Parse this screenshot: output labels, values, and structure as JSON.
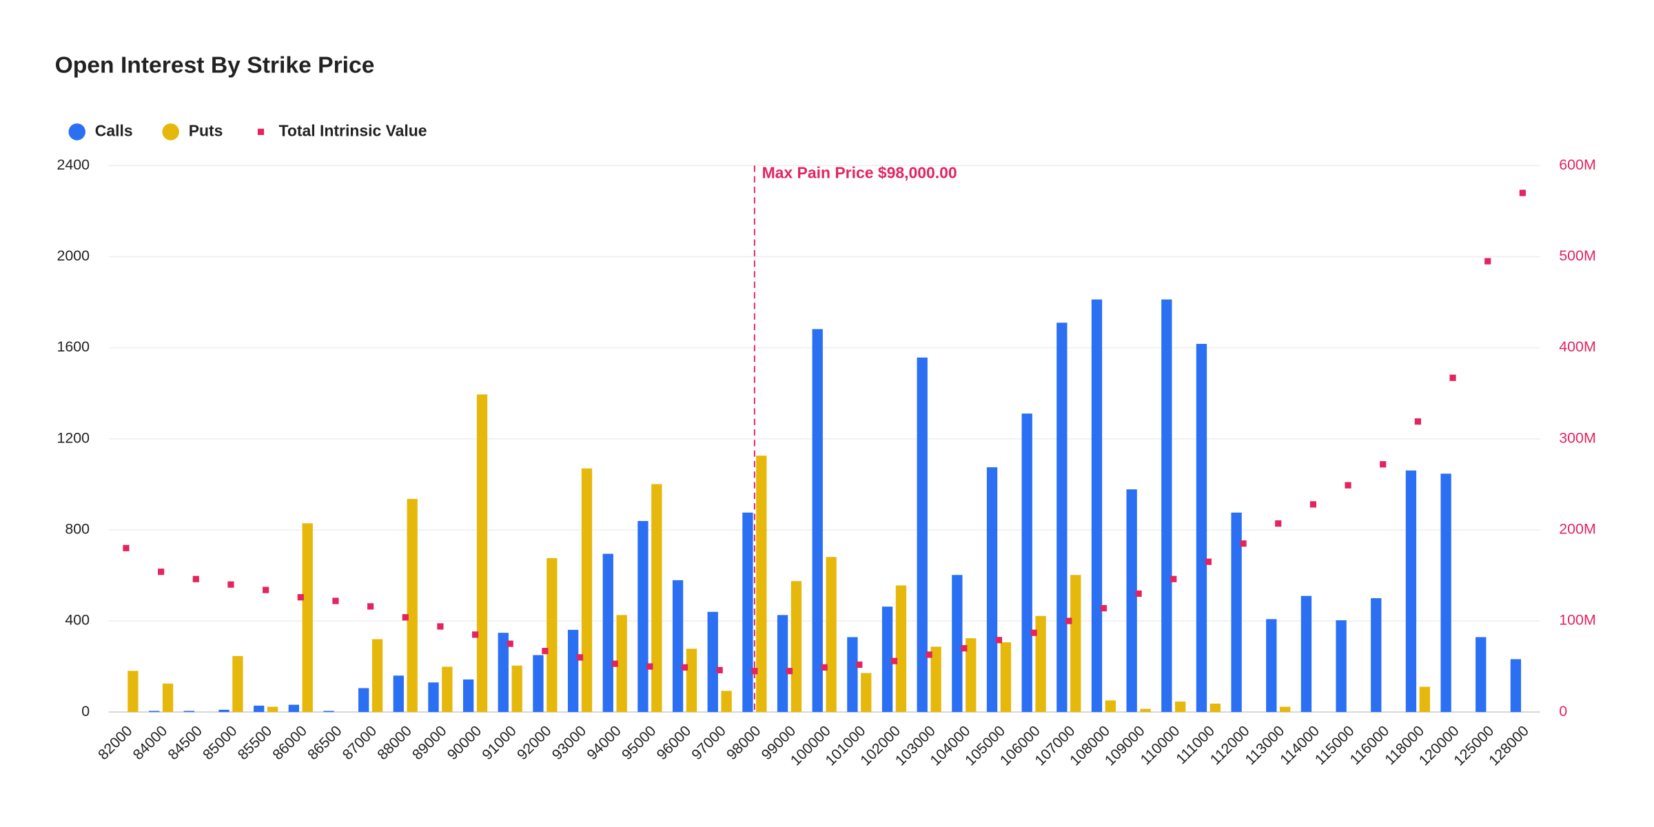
{
  "chart_data": {
    "type": "bar",
    "title": "Open Interest By Strike Price",
    "categories": [
      "82000",
      "84000",
      "84500",
      "85000",
      "85500",
      "86000",
      "86500",
      "87000",
      "88000",
      "89000",
      "90000",
      "91000",
      "92000",
      "93000",
      "94000",
      "95000",
      "96000",
      "97000",
      "98000",
      "99000",
      "100000",
      "101000",
      "102000",
      "103000",
      "104000",
      "105000",
      "106000",
      "107000",
      "108000",
      "109000",
      "110000",
      "111000",
      "112000",
      "113000",
      "114000",
      "115000",
      "116000",
      "118000",
      "120000",
      "125000",
      "128000"
    ],
    "series": [
      {
        "name": "Calls",
        "type": "bar",
        "color": "#2b6ff2",
        "values": [
          0,
          5,
          5,
          10,
          28,
          32,
          5,
          105,
          160,
          130,
          143,
          348,
          250,
          361,
          695,
          839,
          579,
          440,
          876,
          426,
          1682,
          329,
          463,
          1557,
          602,
          1075,
          1311,
          1710,
          1812,
          978,
          1812,
          1617,
          876,
          408,
          510,
          403,
          500,
          1061,
          1047,
          329,
          232
        ]
      },
      {
        "name": "Puts",
        "type": "bar",
        "color": "#e6b80c",
        "values": [
          181,
          125,
          0,
          246,
          23,
          829,
          0,
          320,
          936,
          199,
          1395,
          204,
          676,
          1070,
          426,
          1001,
          278,
          93,
          1126,
          575,
          681,
          171,
          556,
          287,
          324,
          306,
          422,
          602,
          51,
          14,
          46,
          37,
          0,
          23,
          0,
          0,
          0,
          111,
          0,
          0,
          0
        ]
      },
      {
        "name": "Total Intrinsic Value",
        "type": "scatter",
        "axis": "y2",
        "color": "#e3245f",
        "values": [
          180000000,
          154000000,
          146000000,
          140000000,
          134000000,
          126000000,
          122000000,
          116000000,
          104000000,
          94000000,
          85000000,
          75000000,
          67000000,
          60000000,
          53000000,
          50000000,
          49000000,
          46000000,
          45000000,
          45000000,
          49000000,
          52000000,
          56000000,
          63000000,
          70000000,
          79000000,
          87000000,
          100000000,
          114000000,
          130000000,
          146000000,
          165000000,
          185000000,
          207000000,
          228000000,
          249000000,
          272000000,
          319000000,
          367000000,
          495000000,
          570000000
        ]
      }
    ],
    "ylim": [
      0,
      2400
    ],
    "yticks": [
      0,
      400,
      800,
      1200,
      1600,
      2000,
      2400
    ],
    "y2lim": [
      0,
      600000000
    ],
    "y2ticks": [
      0,
      {
        "value": 100000000,
        "label": "100M"
      },
      {
        "value": 200000000,
        "label": "200M"
      },
      {
        "value": 300000000,
        "label": "300M"
      },
      {
        "value": 400000000,
        "label": "400M"
      },
      {
        "value": 500000000,
        "label": "500M"
      },
      {
        "value": 600000000,
        "label": "600M"
      }
    ],
    "grid": true,
    "legend": "top-left",
    "annotation": {
      "label": "Max Pain Price $98,000.00",
      "category": "98000",
      "color": "#e3245f"
    }
  }
}
